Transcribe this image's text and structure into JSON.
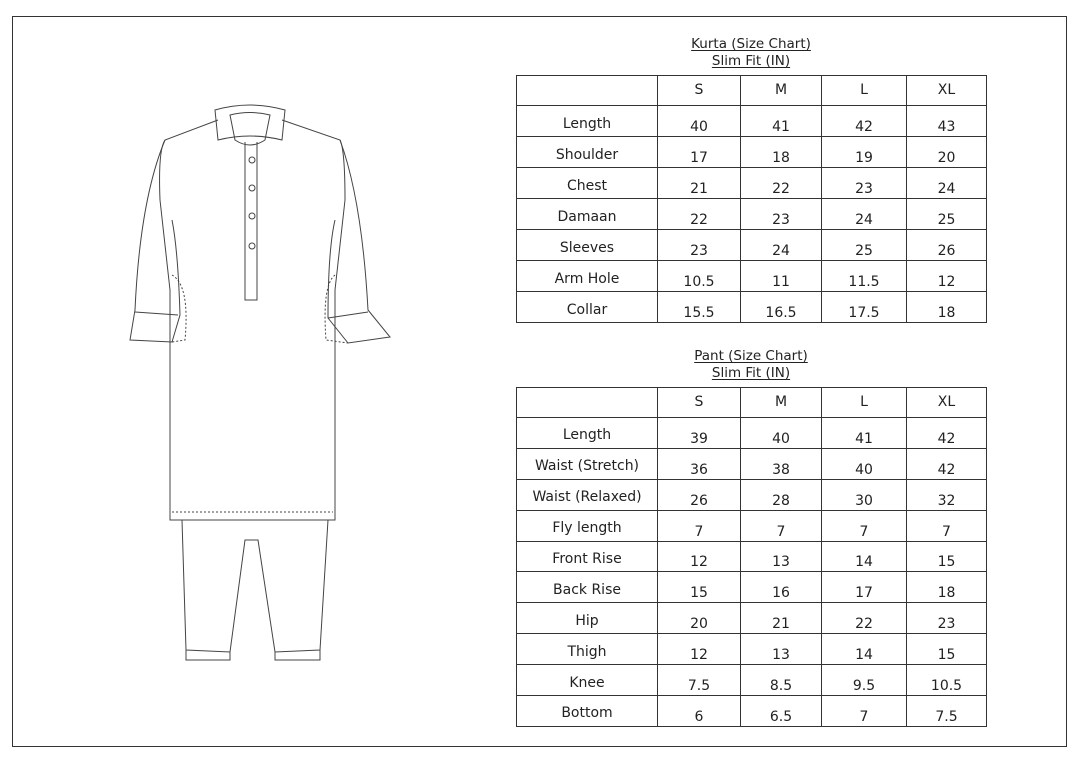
{
  "sizes": [
    "S",
    "M",
    "L",
    "XL"
  ],
  "kurta": {
    "title": "Kurta (Size Chart)",
    "subtitle": "Slim Fit (IN)",
    "rows": [
      {
        "label": "Length",
        "values": [
          "40",
          "41",
          "42",
          "43"
        ]
      },
      {
        "label": "Shoulder",
        "values": [
          "17",
          "18",
          "19",
          "20"
        ]
      },
      {
        "label": "Chest",
        "values": [
          "21",
          "22",
          "23",
          "24"
        ]
      },
      {
        "label": "Damaan",
        "values": [
          "22",
          "23",
          "24",
          "25"
        ]
      },
      {
        "label": "Sleeves",
        "values": [
          "23",
          "24",
          "25",
          "26"
        ]
      },
      {
        "label": "Arm Hole",
        "values": [
          "10.5",
          "11",
          "11.5",
          "12"
        ]
      },
      {
        "label": "Collar",
        "values": [
          "15.5",
          "16.5",
          "17.5",
          "18"
        ]
      }
    ]
  },
  "pant": {
    "title": "Pant (Size Chart)",
    "subtitle": "Slim Fit (IN)",
    "rows": [
      {
        "label": "Length",
        "values": [
          "39",
          "40",
          "41",
          "42"
        ]
      },
      {
        "label": "Waist (Stretch)",
        "values": [
          "36",
          "38",
          "40",
          "42"
        ]
      },
      {
        "label": "Waist (Relaxed)",
        "values": [
          "26",
          "28",
          "30",
          "32"
        ]
      },
      {
        "label": "Fly length",
        "values": [
          "7",
          "7",
          "7",
          "7"
        ]
      },
      {
        "label": "Front Rise",
        "values": [
          "12",
          "13",
          "14",
          "15"
        ]
      },
      {
        "label": "Back Rise",
        "values": [
          "15",
          "16",
          "17",
          "18"
        ]
      },
      {
        "label": "Hip",
        "values": [
          "20",
          "21",
          "22",
          "23"
        ]
      },
      {
        "label": "Thigh",
        "values": [
          "12",
          "13",
          "14",
          "15"
        ]
      },
      {
        "label": "Knee",
        "values": [
          "7.5",
          "8.5",
          "9.5",
          "10.5"
        ]
      },
      {
        "label": "Bottom",
        "values": [
          "6",
          "6.5",
          "7",
          "7.5"
        ]
      }
    ]
  }
}
